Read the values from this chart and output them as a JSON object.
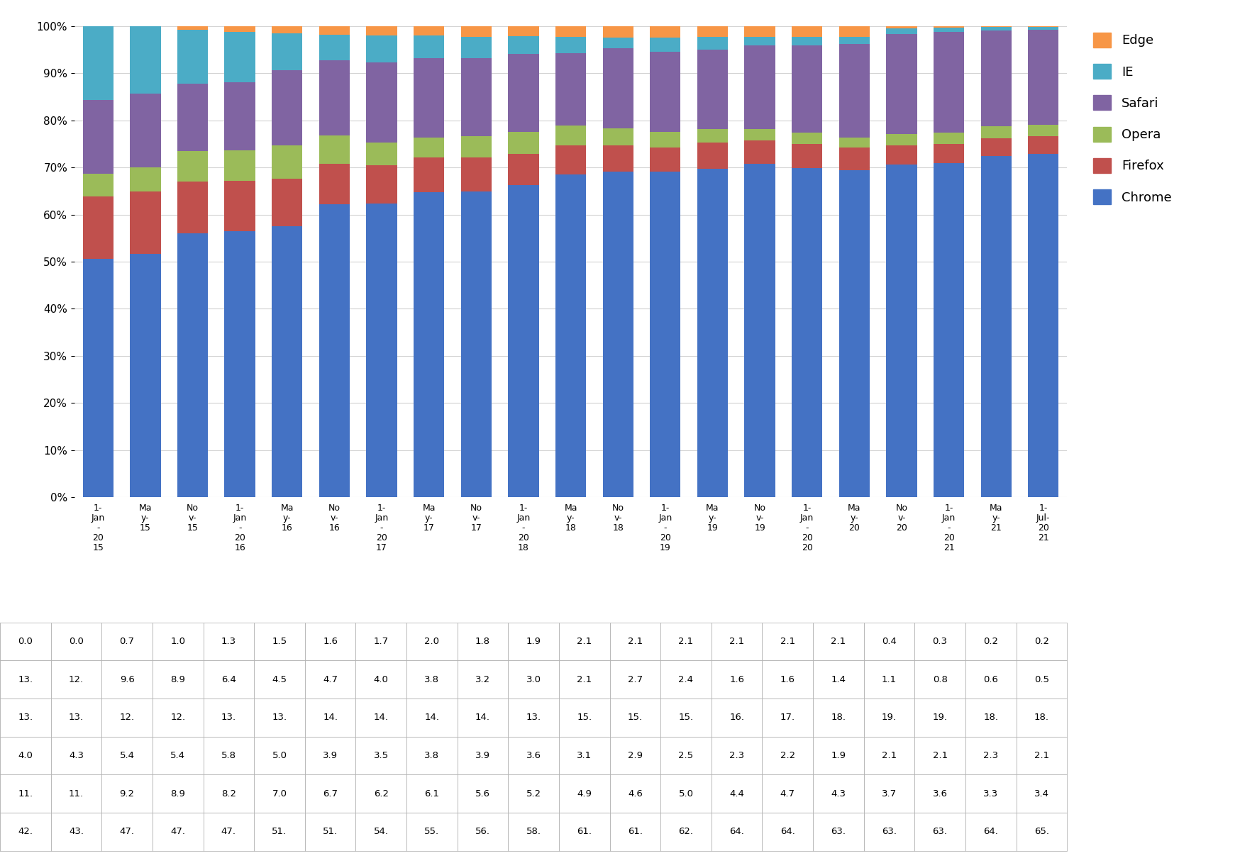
{
  "categories": [
    "1-\nJan\n-\n20\n15",
    "Ma\ny-\n15",
    "No\nv-\n15",
    "1-\nJan\n-\n20\n16",
    "Ma\ny-\n16",
    "No\nv-\n16",
    "1-\nJan\n-\n20\n17",
    "Ma\ny-\n17",
    "No\nv-\n17",
    "1-\nJan\n-\n20\n18",
    "Ma\ny-\n18",
    "No\nv-\n18",
    "1-\nJan\n-\n20\n19",
    "Ma\ny-\n19",
    "No\nv-\n19",
    "1-\nJan\n-\n20\n20",
    "Ma\ny-\n20",
    "No\nv-\n20",
    "1-\nJan\n-\n20\n21",
    "Ma\ny-\n21",
    "1-\nJul-\n20\n21"
  ],
  "chrome": [
    42.0,
    43.0,
    47.0,
    47.0,
    47.0,
    51.0,
    51.0,
    54.0,
    55.0,
    56.0,
    58.0,
    61.0,
    61.0,
    62.0,
    64.0,
    64.0,
    63.0,
    63.0,
    63.0,
    64.0,
    65.0
  ],
  "firefox": [
    11.0,
    11.0,
    9.2,
    8.9,
    8.2,
    7.0,
    6.7,
    6.2,
    6.1,
    5.6,
    5.2,
    4.9,
    4.6,
    5.0,
    4.4,
    4.7,
    4.3,
    3.7,
    3.6,
    3.3,
    3.4
  ],
  "opera": [
    4.0,
    4.3,
    5.4,
    5.4,
    5.8,
    5.0,
    3.9,
    3.5,
    3.8,
    3.9,
    3.6,
    3.1,
    2.9,
    2.5,
    2.3,
    2.2,
    1.9,
    2.1,
    2.1,
    2.3,
    2.1
  ],
  "safari": [
    13.0,
    13.0,
    12.0,
    12.0,
    13.0,
    13.0,
    14.0,
    14.0,
    14.0,
    14.0,
    13.0,
    15.0,
    15.0,
    15.0,
    16.0,
    17.0,
    18.0,
    19.0,
    19.0,
    18.0,
    18.0
  ],
  "ie": [
    13.0,
    12.0,
    9.6,
    8.9,
    6.4,
    4.5,
    4.7,
    4.0,
    3.8,
    3.2,
    3.0,
    2.1,
    2.7,
    2.4,
    1.6,
    1.6,
    1.4,
    1.1,
    0.8,
    0.6,
    0.5
  ],
  "edge": [
    0.0,
    0.0,
    0.7,
    1.0,
    1.3,
    1.5,
    1.6,
    1.7,
    2.0,
    1.8,
    1.9,
    2.1,
    2.1,
    2.1,
    2.1,
    2.1,
    2.1,
    0.4,
    0.3,
    0.2,
    0.2
  ],
  "colors": {
    "Chrome": "#4472C4",
    "Firefox": "#C0504D",
    "Opera": "#9BBB59",
    "Safari": "#8064A2",
    "IE": "#4BACC6",
    "Edge": "#F79646"
  },
  "table_labels": {
    "Edge": [
      "0.0",
      "0.0",
      "0.7",
      "1.0",
      "1.3",
      "1.5",
      "1.6",
      "1.7",
      "2.0",
      "1.8",
      "1.9",
      "2.1",
      "2.1",
      "2.1",
      "2.1",
      "2.1",
      "2.1",
      "0.4",
      "0.3",
      "0.2",
      "0.2"
    ],
    "IE": [
      "13.",
      "12.",
      "9.6",
      "8.9",
      "6.4",
      "4.5",
      "4.7",
      "4.0",
      "3.8",
      "3.2",
      "3.0",
      "2.1",
      "2.7",
      "2.4",
      "1.6",
      "1.6",
      "1.4",
      "1.1",
      "0.8",
      "0.6",
      "0.5"
    ],
    "Safari": [
      "13.",
      "13.",
      "12.",
      "12.",
      "13.",
      "13.",
      "14.",
      "14.",
      "14.",
      "14.",
      "13.",
      "15.",
      "15.",
      "15.",
      "16.",
      "17.",
      "18.",
      "19.",
      "19.",
      "18.",
      "18."
    ],
    "Opera": [
      "4.0",
      "4.3",
      "5.4",
      "5.4",
      "5.8",
      "5.0",
      "3.9",
      "3.5",
      "3.8",
      "3.9",
      "3.6",
      "3.1",
      "2.9",
      "2.5",
      "2.3",
      "2.2",
      "1.9",
      "2.1",
      "2.1",
      "2.3",
      "2.1"
    ],
    "Firefox": [
      "11.",
      "11.",
      "9.2",
      "8.9",
      "8.2",
      "7.0",
      "6.7",
      "6.2",
      "6.1",
      "5.6",
      "5.2",
      "4.9",
      "4.6",
      "5.0",
      "4.4",
      "4.7",
      "4.3",
      "3.7",
      "3.6",
      "3.3",
      "3.4"
    ],
    "Chrome": [
      "42.",
      "43.",
      "47.",
      "47.",
      "47.",
      "51.",
      "51.",
      "54.",
      "55.",
      "56.",
      "58.",
      "61.",
      "61.",
      "62.",
      "64.",
      "64.",
      "63.",
      "63.",
      "63.",
      "64.",
      "65."
    ]
  },
  "background_color": "#FFFFFF",
  "grid_color": "#D3D3D3",
  "bar_width": 0.65
}
